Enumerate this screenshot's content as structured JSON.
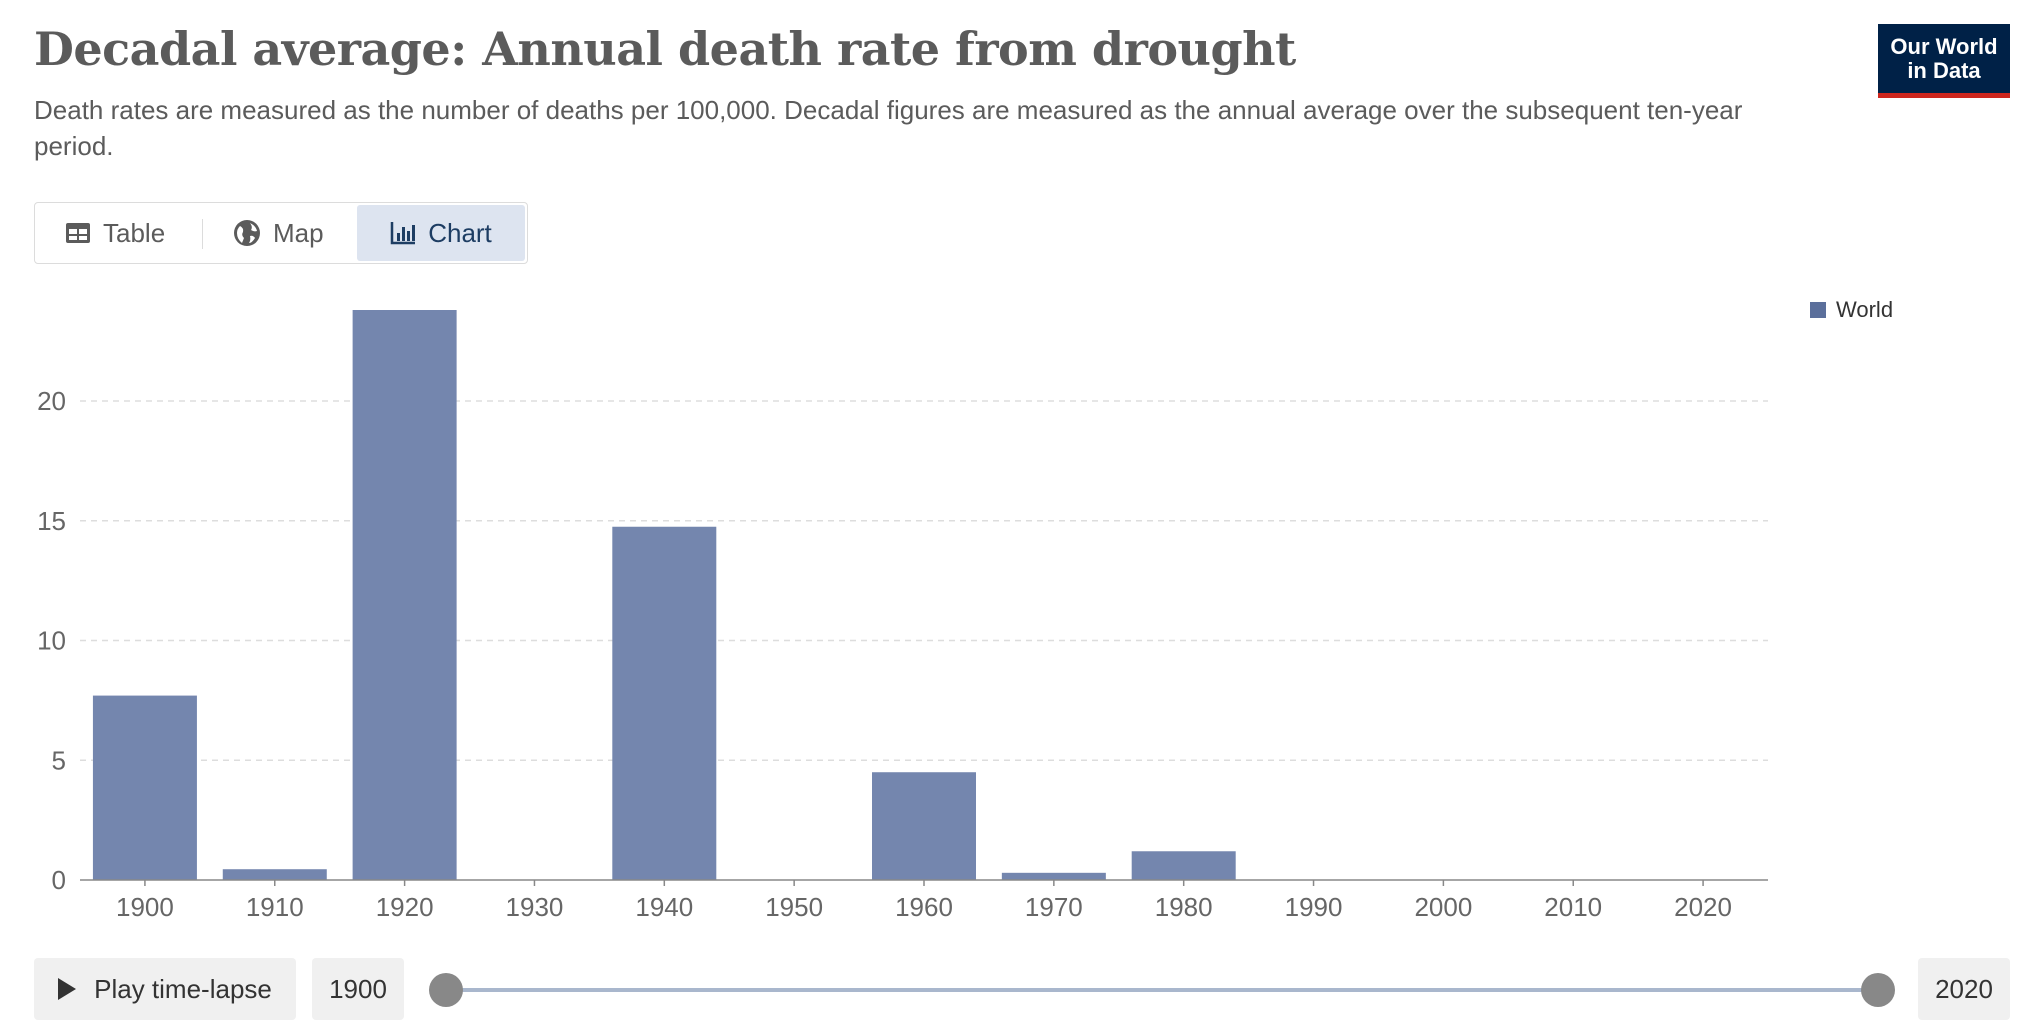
{
  "header": {
    "title": "Decadal average: Annual death rate from drought",
    "subtitle": "Death rates are measured as the number of deaths per 100,000. Decadal figures are measured as the annual average over the subsequent ten-year period.",
    "logo_line1": "Our World",
    "logo_line2": "in Data"
  },
  "tabs": {
    "table": "Table",
    "map": "Map",
    "chart": "Chart",
    "active": "chart"
  },
  "colors": {
    "bar": "#7486ae",
    "legend": "#5b6f9b",
    "grid": "#dddddd",
    "axis": "#888888"
  },
  "chart_data": {
    "type": "bar",
    "title": "Decadal average: Annual death rate from drought",
    "xlabel": "",
    "ylabel": "",
    "ylim": [
      0,
      23.8
    ],
    "yticks": [
      0,
      5,
      10,
      15,
      20
    ],
    "grid": true,
    "legend_position": "top-right",
    "categories": [
      "1900",
      "1910",
      "1920",
      "1930",
      "1940",
      "1950",
      "1960",
      "1970",
      "1980",
      "1990",
      "2000",
      "2010",
      "2020"
    ],
    "series": [
      {
        "name": "World",
        "values": [
          7.7,
          0.45,
          23.8,
          0,
          14.75,
          0,
          4.5,
          0.3,
          1.2,
          0,
          0,
          0,
          0
        ]
      }
    ]
  },
  "timeline": {
    "play_label": "Play time-lapse",
    "start_year": "1900",
    "end_year": "2020"
  }
}
